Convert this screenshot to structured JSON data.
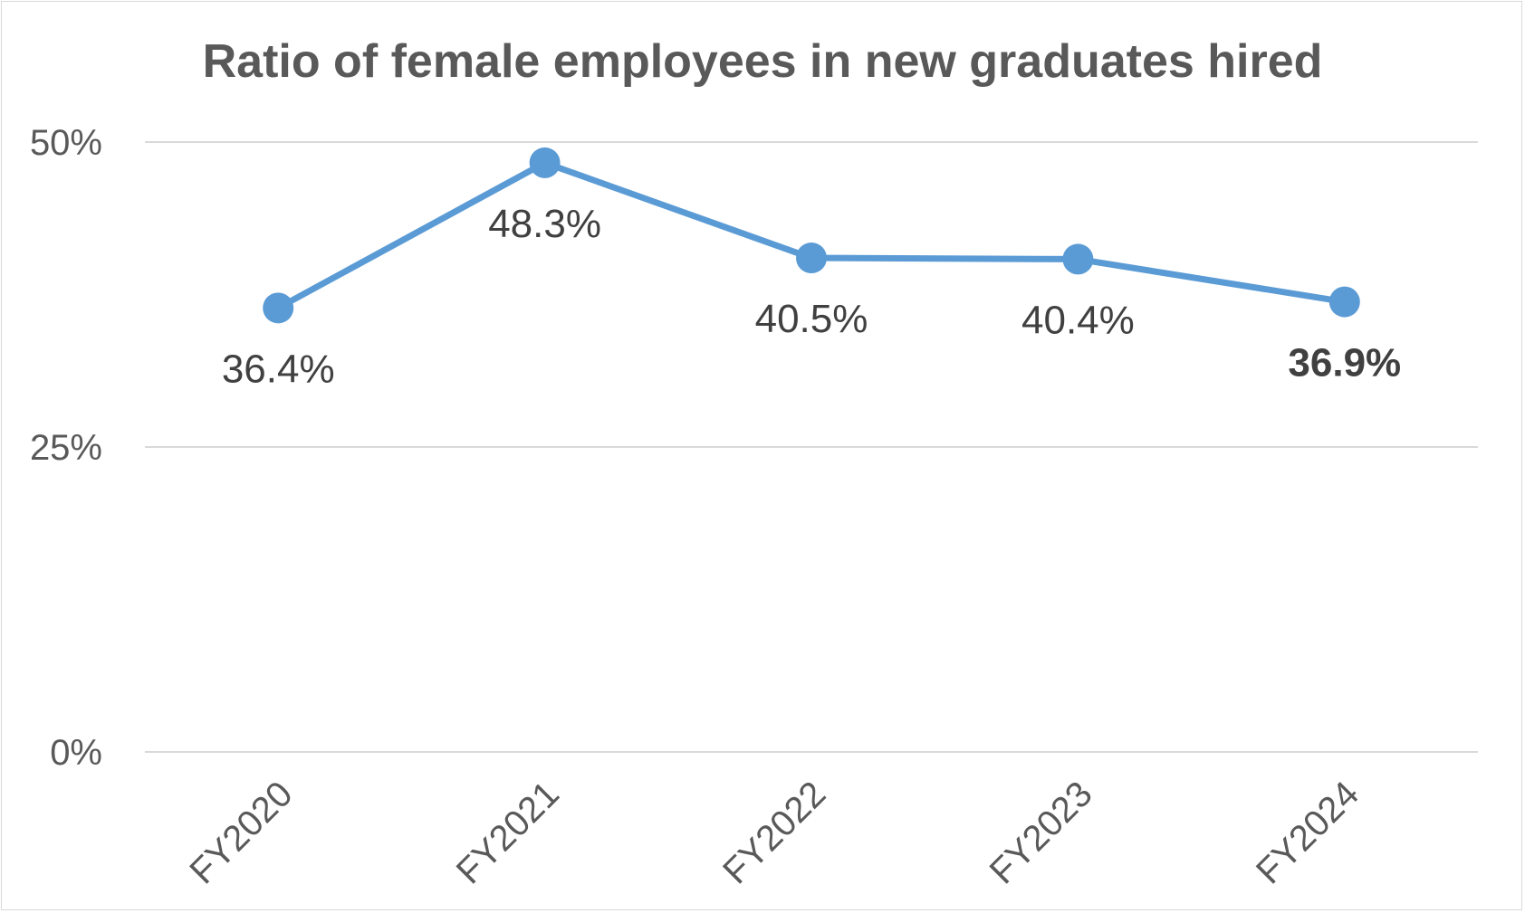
{
  "chart_data": {
    "type": "line",
    "title": "Ratio of female employees in new graduates hired",
    "xlabel": "",
    "ylabel": "",
    "categories": [
      "FY2020",
      "FY2021",
      "FY2022",
      "FY2023",
      "FY2024"
    ],
    "series": [
      {
        "values": [
          36.4,
          48.3,
          40.5,
          40.4,
          36.9
        ]
      }
    ],
    "data_labels": [
      "36.4%",
      "48.3%",
      "40.5%",
      "40.4%",
      "36.9%"
    ],
    "highlighted_label_index": 4,
    "y_ticks": [
      {
        "value": 0,
        "label": "0%"
      },
      {
        "value": 25,
        "label": "25%"
      },
      {
        "value": 50,
        "label": "50%"
      }
    ],
    "ylim": [
      0,
      50
    ],
    "grid": true,
    "legend": "none",
    "colors": {
      "series": "#5b9bd5",
      "grid": "#d9d9d9",
      "text": "#595959",
      "label": "#404040"
    }
  }
}
